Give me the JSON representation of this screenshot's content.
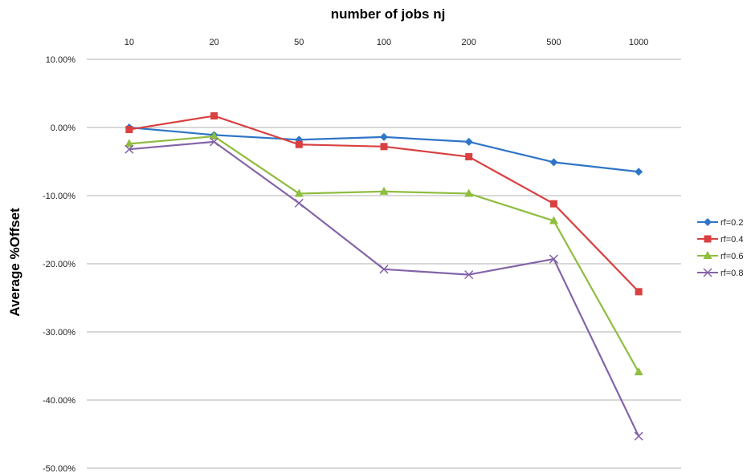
{
  "chart_data": {
    "type": "line",
    "title": "",
    "xlabel": "number of jobs nj",
    "ylabel": "Average %Offset",
    "categories": [
      "10",
      "20",
      "50",
      "100",
      "200",
      "500",
      "1000"
    ],
    "ylim": [
      -50,
      10
    ],
    "yticks": [
      10,
      0,
      -10,
      -20,
      -30,
      -40,
      -50
    ],
    "ytick_labels": [
      "10.00%",
      "0.00%",
      "-10.00%",
      "-20.00%",
      "-30.00%",
      "-40.00%",
      "-50.00%"
    ],
    "x_axis_position": "top",
    "grid": true,
    "legend_position": "right",
    "series": [
      {
        "name": "rf=0.2",
        "color": "#2e75c7",
        "marker": "diamond",
        "values": [
          0.0,
          -1.1,
          -1.8,
          -1.4,
          -2.1,
          -5.1,
          -6.5
        ]
      },
      {
        "name": "rf=0.4",
        "color": "#d94040",
        "marker": "square",
        "values": [
          -0.3,
          1.7,
          -2.5,
          -2.8,
          -4.3,
          -11.2,
          -24.1
        ]
      },
      {
        "name": "rf=0.6",
        "color": "#8fbd3f",
        "marker": "triangle",
        "values": [
          -2.4,
          -1.3,
          -9.7,
          -9.4,
          -9.7,
          -13.7,
          -35.9
        ]
      },
      {
        "name": "rf=0.8",
        "color": "#8464a8",
        "marker": "x",
        "values": [
          -3.2,
          -2.1,
          -11.1,
          -20.8,
          -21.6,
          -19.3,
          -45.3
        ]
      }
    ]
  }
}
